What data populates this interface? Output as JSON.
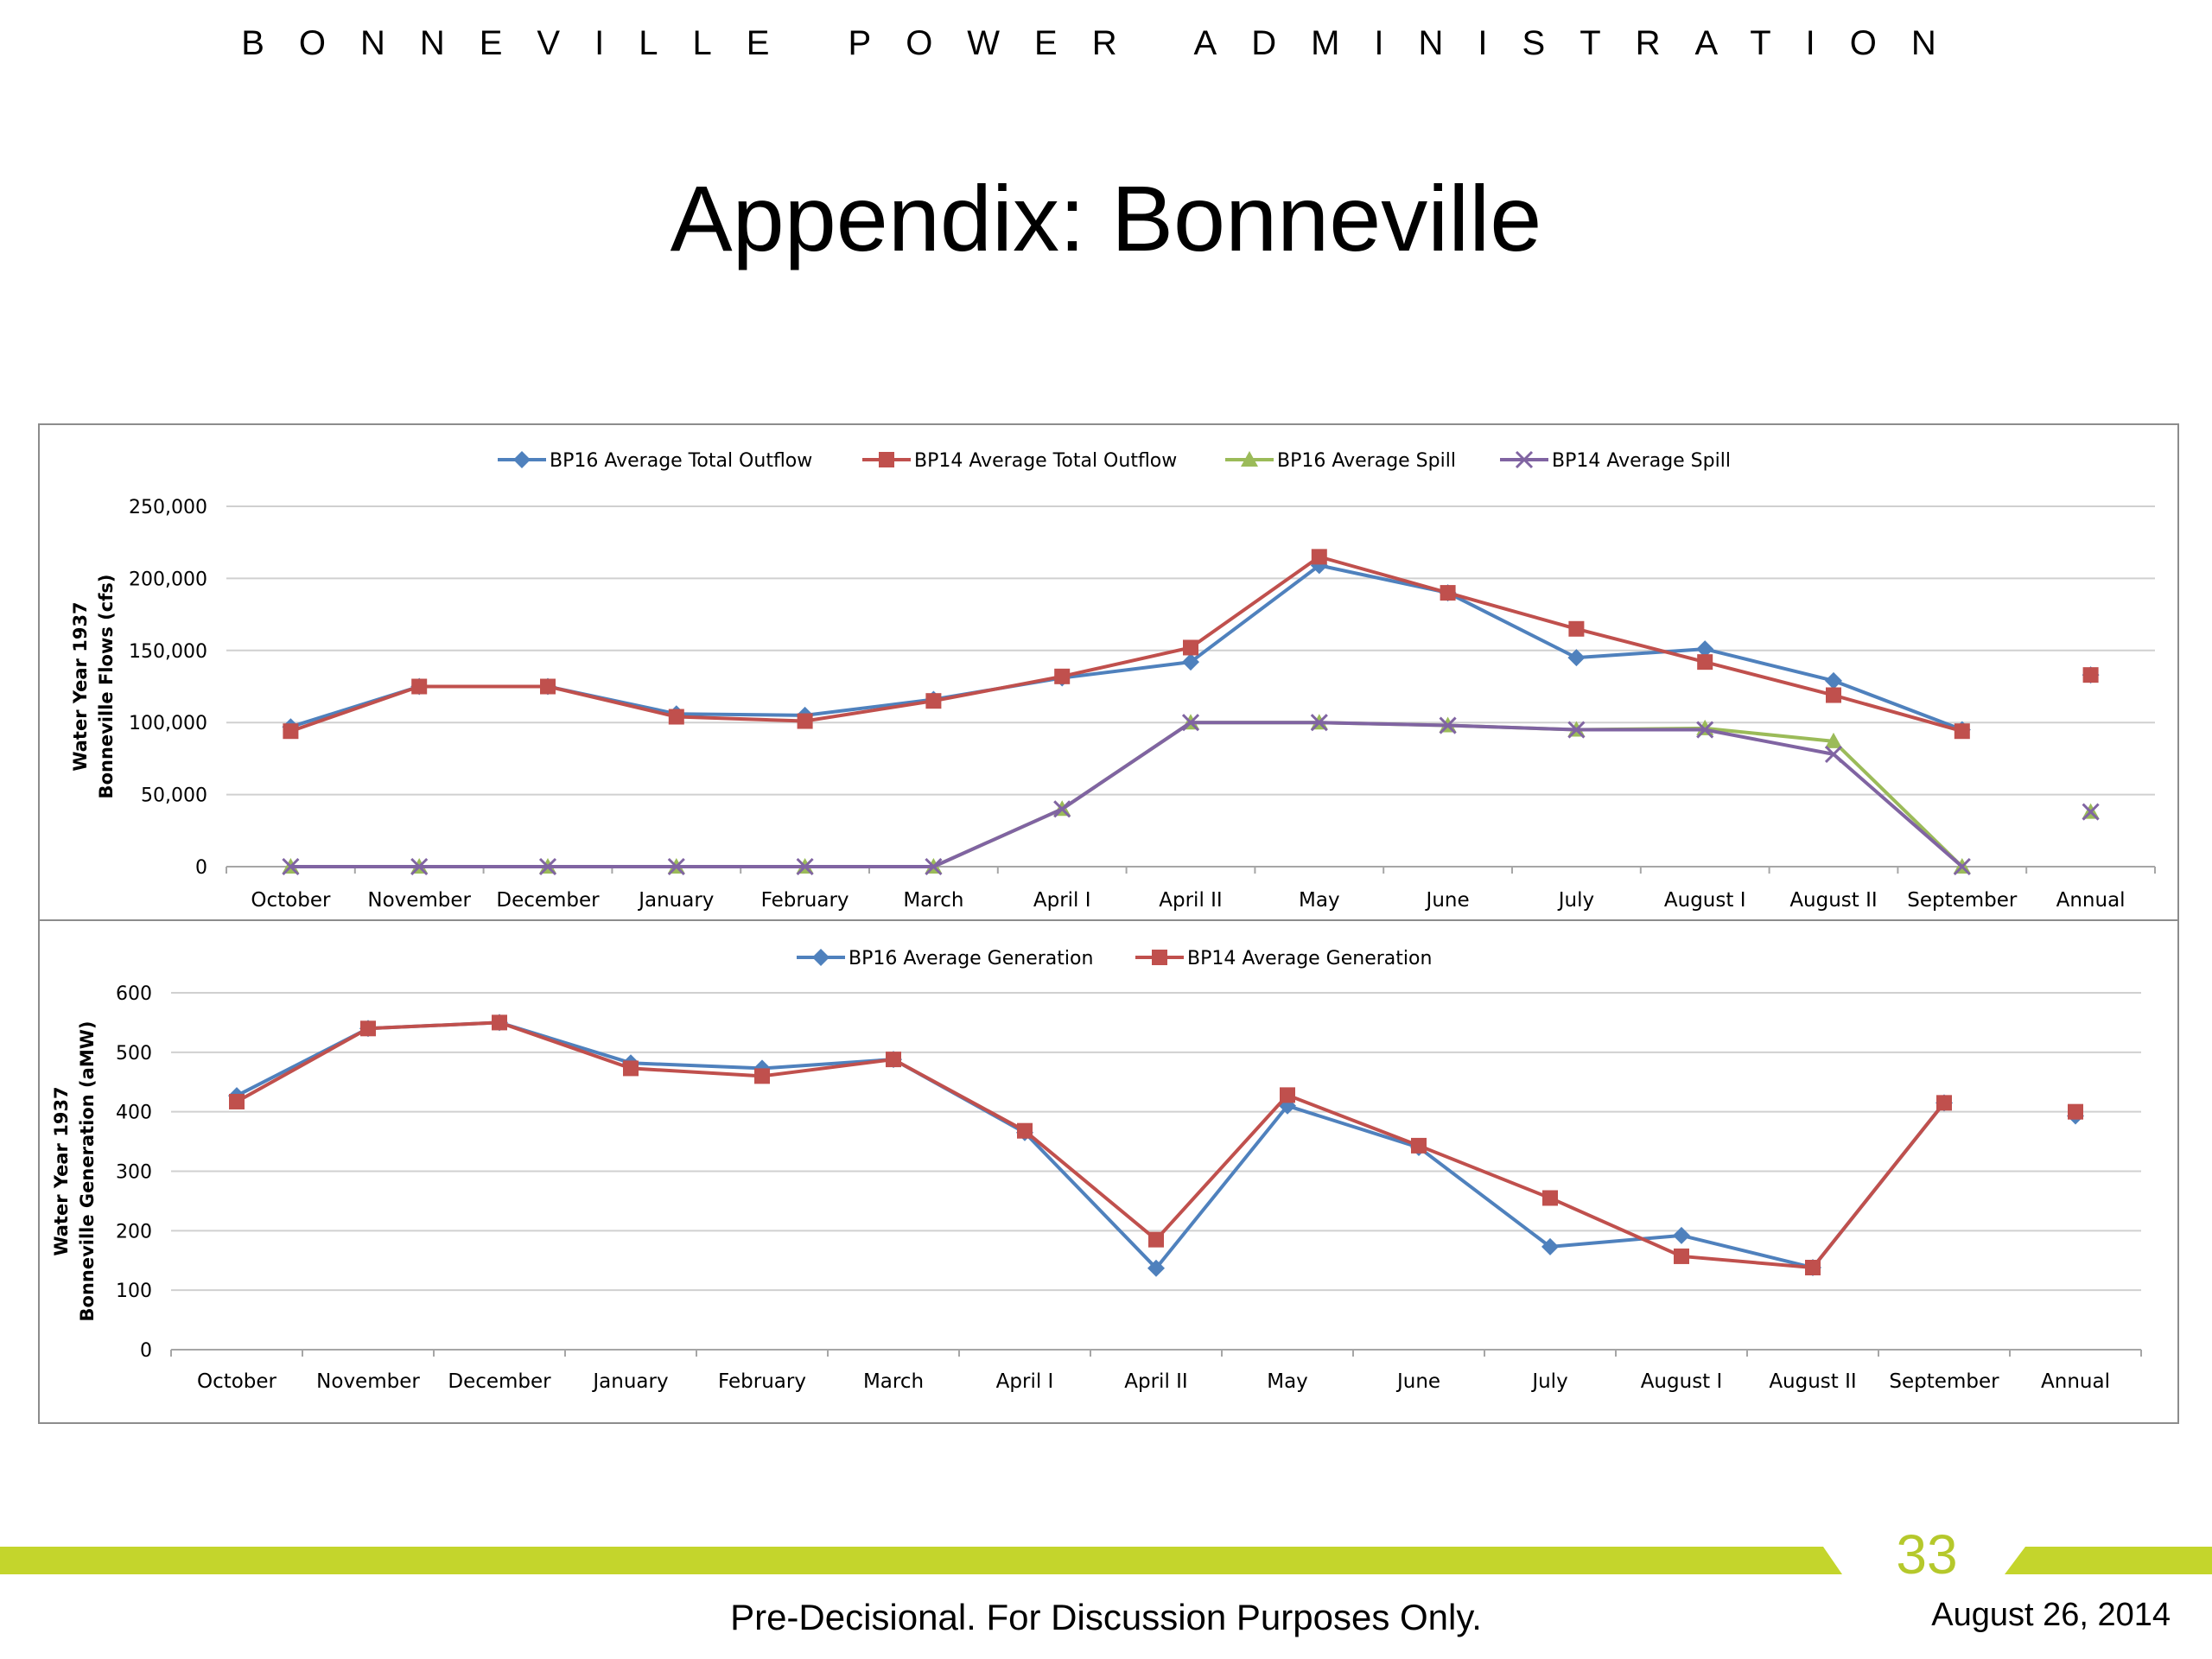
{
  "header": {
    "organization": "BONNEVILLE POWER ADMINISTRATION",
    "title": "Appendix:  Bonneville"
  },
  "footer": {
    "page_number": "33",
    "disclaimer": "Pre-Decisional.  For Discussion Purposes Only.",
    "date": "August 26, 2014"
  },
  "colors": {
    "bp16_outflow": "#4f81bd",
    "bp14_outflow": "#c0504d",
    "bp16_spill": "#9bbb59",
    "bp14_spill": "#8064a2",
    "accent_bar": "#c4d52c"
  },
  "chart_data": [
    {
      "type": "line",
      "ylabel": "Water Year 1937\nBonneville Flows (cfs)",
      "xlabel": "",
      "ylim": [
        0,
        250000
      ],
      "yticks": [
        0,
        50000,
        100000,
        150000,
        200000,
        250000
      ],
      "ytick_labels": [
        "0",
        "50,000",
        "100,000",
        "150,000",
        "200,000",
        "250,000"
      ],
      "grid": true,
      "legend_position": "top-center",
      "categories": [
        "October",
        "November",
        "December",
        "January",
        "February",
        "March",
        "April I",
        "April II",
        "May",
        "June",
        "July",
        "August I",
        "August II",
        "September",
        "Annual"
      ],
      "series": [
        {
          "name": "BP16 Average Total Outflow",
          "marker": "diamond",
          "values": [
            97000,
            125000,
            125000,
            106000,
            105000,
            116000,
            131000,
            142000,
            209000,
            190000,
            145000,
            151000,
            129000,
            95000,
            133000
          ]
        },
        {
          "name": "BP14 Average Total Outflow",
          "marker": "square",
          "values": [
            94000,
            125000,
            125000,
            104000,
            101000,
            115000,
            132000,
            152000,
            215000,
            190000,
            165000,
            142000,
            119000,
            94000,
            133000
          ]
        },
        {
          "name": "BP16 Average Spill",
          "marker": "triangle",
          "values": [
            0,
            0,
            0,
            0,
            0,
            0,
            40000,
            100000,
            100000,
            98000,
            95000,
            96000,
            87000,
            0,
            38000
          ]
        },
        {
          "name": "BP14 Average Spill",
          "marker": "x",
          "values": [
            0,
            0,
            0,
            0,
            0,
            0,
            40000,
            100000,
            100000,
            98000,
            95000,
            95000,
            78000,
            0,
            38000
          ]
        }
      ]
    },
    {
      "type": "line",
      "ylabel": "Water Year 1937\nBonneville Generation (aMW)",
      "xlabel": "",
      "ylim": [
        0,
        600
      ],
      "yticks": [
        0,
        100,
        200,
        300,
        400,
        500,
        600
      ],
      "ytick_labels": [
        "0",
        "100",
        "200",
        "300",
        "400",
        "500",
        "600"
      ],
      "grid": true,
      "legend_position": "top-center",
      "categories": [
        "October",
        "November",
        "December",
        "January",
        "February",
        "March",
        "April I",
        "April II",
        "May",
        "June",
        "July",
        "August I",
        "August II",
        "September",
        "Annual"
      ],
      "series": [
        {
          "name": "BP16 Average Generation",
          "marker": "diamond",
          "values": [
            427,
            540,
            550,
            482,
            473,
            488,
            365,
            137,
            410,
            340,
            173,
            192,
            138,
            415,
            393
          ]
        },
        {
          "name": "BP14 Average Generation",
          "marker": "square",
          "values": [
            417,
            540,
            550,
            473,
            460,
            488,
            368,
            185,
            428,
            343,
            255,
            157,
            138,
            415,
            400
          ]
        }
      ]
    }
  ]
}
